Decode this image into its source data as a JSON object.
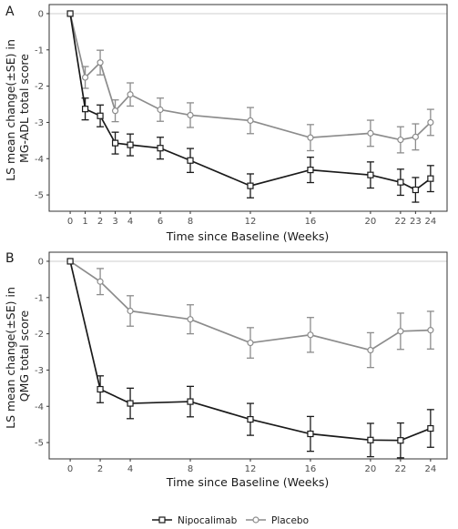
{
  "colors": {
    "nipocalimab": "#1a1a1a",
    "placebo": "#8c8c8c",
    "zero_line": "#cfcfcf",
    "frame": "#333333"
  },
  "legend": {
    "position": "bottom",
    "entries": [
      "Nipocalimab",
      "Placebo"
    ]
  },
  "chart_data": [
    {
      "type": "line",
      "panel": "A",
      "xlabel": "Time since Baseline (Weeks)",
      "ylabel_lines": [
        "LS mean change(±SE) in",
        "MG-ADL total score"
      ],
      "x_ticks": [
        0,
        1,
        2,
        3,
        4,
        6,
        8,
        12,
        16,
        20,
        22,
        23,
        24
      ],
      "y_ticks": [
        0,
        -1,
        -2,
        -3,
        -4,
        -5
      ],
      "xlim": [
        -1.4,
        25.1
      ],
      "ylim": [
        -5.45,
        0.25
      ],
      "grid": false,
      "series": [
        {
          "name": "Nipocalimab",
          "marker": "square",
          "points": [
            {
              "x": 0,
              "y": 0,
              "se": 0
            },
            {
              "x": 1,
              "y": -2.63,
              "se": 0.3
            },
            {
              "x": 2,
              "y": -2.82,
              "se": 0.3
            },
            {
              "x": 3,
              "y": -3.57,
              "se": 0.3
            },
            {
              "x": 4,
              "y": -3.62,
              "se": 0.3
            },
            {
              "x": 6,
              "y": -3.71,
              "se": 0.3
            },
            {
              "x": 8,
              "y": -4.05,
              "se": 0.33
            },
            {
              "x": 12,
              "y": -4.75,
              "se": 0.33
            },
            {
              "x": 16,
              "y": -4.31,
              "se": 0.35
            },
            {
              "x": 20,
              "y": -4.45,
              "se": 0.36
            },
            {
              "x": 22,
              "y": -4.65,
              "se": 0.36
            },
            {
              "x": 23,
              "y": -4.86,
              "se": 0.34
            },
            {
              "x": 24,
              "y": -4.55,
              "se": 0.36
            }
          ]
        },
        {
          "name": "Placebo",
          "marker": "circle",
          "points": [
            {
              "x": 0,
              "y": 0,
              "se": 0
            },
            {
              "x": 1,
              "y": -1.76,
              "se": 0.3
            },
            {
              "x": 2,
              "y": -1.35,
              "se": 0.34
            },
            {
              "x": 3,
              "y": -2.68,
              "se": 0.3
            },
            {
              "x": 4,
              "y": -2.23,
              "se": 0.32
            },
            {
              "x": 6,
              "y": -2.65,
              "se": 0.32
            },
            {
              "x": 8,
              "y": -2.8,
              "se": 0.34
            },
            {
              "x": 12,
              "y": -2.95,
              "se": 0.36
            },
            {
              "x": 16,
              "y": -3.42,
              "se": 0.36
            },
            {
              "x": 20,
              "y": -3.3,
              "se": 0.36
            },
            {
              "x": 22,
              "y": -3.48,
              "se": 0.36
            },
            {
              "x": 23,
              "y": -3.4,
              "se": 0.36
            },
            {
              "x": 24,
              "y": -3.0,
              "se": 0.36
            }
          ]
        }
      ]
    },
    {
      "type": "line",
      "panel": "B",
      "xlabel": "Time since Baseline (Weeks)",
      "ylabel_lines": [
        "LS mean change(±SE) in",
        "QMG total score"
      ],
      "x_ticks": [
        0,
        2,
        4,
        8,
        12,
        16,
        20,
        22,
        24
      ],
      "y_ticks": [
        0,
        -1,
        -2,
        -3,
        -4,
        -5
      ],
      "xlim": [
        -1.4,
        25.1
      ],
      "ylim": [
        -5.45,
        0.25
      ],
      "grid": false,
      "series": [
        {
          "name": "Nipocalimab",
          "marker": "square",
          "points": [
            {
              "x": 0,
              "y": 0,
              "se": 0
            },
            {
              "x": 2,
              "y": -3.53,
              "se": 0.37
            },
            {
              "x": 4,
              "y": -3.92,
              "se": 0.42
            },
            {
              "x": 8,
              "y": -3.87,
              "se": 0.42
            },
            {
              "x": 12,
              "y": -4.36,
              "se": 0.44
            },
            {
              "x": 16,
              "y": -4.76,
              "se": 0.48
            },
            {
              "x": 20,
              "y": -4.93,
              "se": 0.46
            },
            {
              "x": 22,
              "y": -4.94,
              "se": 0.48
            },
            {
              "x": 24,
              "y": -4.61,
              "se": 0.52
            }
          ]
        },
        {
          "name": "Placebo",
          "marker": "circle",
          "points": [
            {
              "x": 0,
              "y": 0,
              "se": 0
            },
            {
              "x": 2,
              "y": -0.56,
              "se": 0.36
            },
            {
              "x": 4,
              "y": -1.37,
              "se": 0.42
            },
            {
              "x": 8,
              "y": -1.6,
              "se": 0.4
            },
            {
              "x": 12,
              "y": -2.25,
              "se": 0.42
            },
            {
              "x": 16,
              "y": -2.03,
              "se": 0.48
            },
            {
              "x": 20,
              "y": -2.45,
              "se": 0.48
            },
            {
              "x": 22,
              "y": -1.93,
              "se": 0.5
            },
            {
              "x": 24,
              "y": -1.9,
              "se": 0.52
            }
          ]
        }
      ]
    }
  ]
}
